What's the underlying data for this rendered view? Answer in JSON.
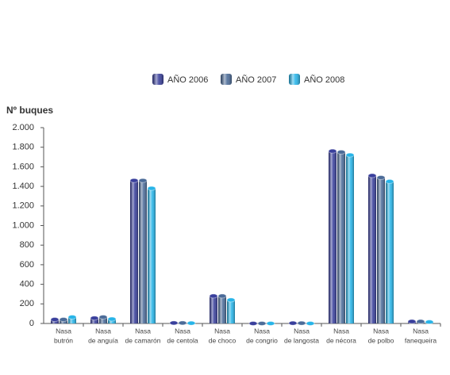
{
  "chart_data": {
    "type": "bar",
    "y_label": "Nº buques",
    "categories": [
      [
        "Nasa",
        "butrón"
      ],
      [
        "Nasa",
        "de anguía"
      ],
      [
        "Nasa",
        "de camarón"
      ],
      [
        "Nasa",
        "de centola"
      ],
      [
        "Nasa",
        "de choco"
      ],
      [
        "Nasa",
        "de congrio"
      ],
      [
        "Nasa",
        "de langosta"
      ],
      [
        "Nasa",
        "de nécora"
      ],
      [
        "Nasa",
        "de polbo"
      ],
      [
        "Nasa",
        "fanequeira"
      ]
    ],
    "series": [
      {
        "name": "AÑO 2006",
        "color": "#393f9c",
        "values": [
          40,
          55,
          1460,
          5,
          280,
          0,
          3,
          1760,
          1510,
          20
        ]
      },
      {
        "name": "AÑO 2007",
        "color": "#4b6b98",
        "values": [
          40,
          65,
          1460,
          5,
          280,
          0,
          3,
          1750,
          1490,
          20
        ]
      },
      {
        "name": "AÑO 2008",
        "color": "#27b4e8",
        "values": [
          65,
          45,
          1380,
          3,
          240,
          0,
          0,
          1720,
          1450,
          15
        ]
      }
    ],
    "ylim": [
      0,
      2000
    ],
    "yticks": [
      0,
      200,
      400,
      600,
      800,
      {
        "value": 1000,
        "label": "1.000"
      },
      {
        "value": 1200,
        "label": "1.200"
      },
      {
        "value": 1400,
        "label": "1.400"
      },
      {
        "value": 1600,
        "label": "1.600"
      },
      {
        "value": 1800,
        "label": "1.800"
      },
      {
        "value": 2000,
        "label": "2.000"
      }
    ]
  }
}
